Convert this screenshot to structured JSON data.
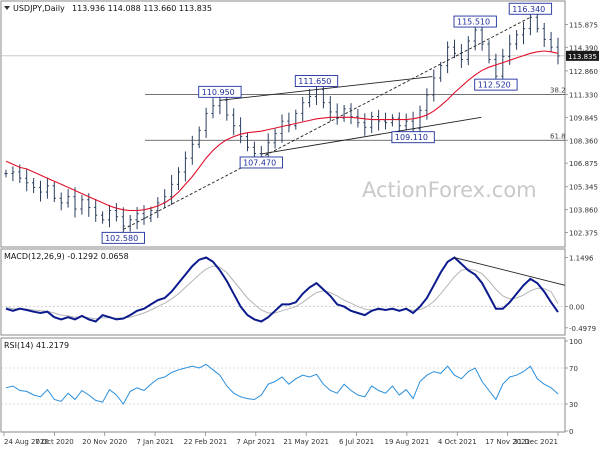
{
  "header": {
    "title": "USDJPY,Daily",
    "ohlc": "113.936 114.088 113.660 113.835"
  },
  "watermark": "ActionForex.com",
  "colors": {
    "price_bars": "#2a3f5f",
    "sma": "#e0102a",
    "macd": "#0b1a8c",
    "signal": "#b5b5b5",
    "rsi": "#2a8fdb",
    "label_box": "#1f2f9c",
    "price_tag": "#1a1a1a",
    "fib_line": "#444444"
  },
  "chart_data": [
    {
      "type": "line",
      "title": "USDJPY,Daily",
      "ylim": [
        101.5,
        117.2
      ],
      "y_ticks": [
        "115.875",
        "114.390",
        "112.860",
        "111.330",
        "109.845",
        "108.360",
        "106.875",
        "105.345",
        "103.860",
        "102.375"
      ],
      "x_ticks": [
        "24 Aug 2020",
        "7 Oct 2020",
        "20 Nov 2020",
        "7 Jan 2021",
        "22 Feb 2021",
        "7 Apr 2021",
        "21 May 2021",
        "6 Jul 2021",
        "19 Aug 2021",
        "4 Oct 2021",
        "17 Nov 2021",
        "31 Dec 2021"
      ],
      "last_price": "113.835",
      "series": [
        {
          "values": [
            106.2,
            106.3,
            105.9,
            105.6,
            105.3,
            105.0,
            105.4,
            104.6,
            104.3,
            104.7,
            103.9,
            104.5,
            104.0,
            103.5,
            103.2,
            103.8,
            103.4,
            102.8,
            103.2,
            103.6,
            103.3,
            103.8,
            104.3,
            104.7,
            105.5,
            106.3,
            107.2,
            108.1,
            109.0,
            110.1,
            110.6,
            110.95,
            110.0,
            109.3,
            108.6,
            107.9,
            107.5,
            107.47,
            108.2,
            108.8,
            109.6,
            109.3,
            110.1,
            110.8,
            111.2,
            111.65,
            110.8,
            110.2,
            109.8,
            110.4,
            109.9,
            109.5,
            109.2,
            109.9,
            109.6,
            109.5,
            109.8,
            109.3,
            109.6,
            109.11,
            110.3,
            111.3,
            112.4,
            113.2,
            114.4,
            114.0,
            113.6,
            114.8,
            115.51,
            114.6,
            113.6,
            112.52,
            113.8,
            114.6,
            115.2,
            115.6,
            116.34,
            115.6,
            114.9,
            114.4,
            113.835
          ]
        },
        {
          "name": "SMA",
          "values": [
            107.0,
            106.8,
            106.6,
            106.5,
            106.3,
            106.1,
            105.9,
            105.7,
            105.5,
            105.3,
            105.1,
            104.9,
            104.7,
            104.5,
            104.3,
            104.1,
            103.95,
            103.85,
            103.8,
            103.8,
            103.85,
            103.95,
            104.1,
            104.3,
            104.6,
            105.0,
            105.5,
            106.0,
            106.6,
            107.2,
            107.7,
            108.1,
            108.4,
            108.6,
            108.75,
            108.85,
            108.9,
            108.95,
            109.05,
            109.15,
            109.25,
            109.35,
            109.45,
            109.55,
            109.65,
            109.75,
            109.8,
            109.85,
            109.85,
            109.85,
            109.85,
            109.8,
            109.75,
            109.7,
            109.7,
            109.7,
            109.7,
            109.7,
            109.7,
            109.75,
            109.85,
            110.0,
            110.25,
            110.6,
            111.0,
            111.45,
            111.85,
            112.25,
            112.6,
            112.9,
            113.1,
            113.25,
            113.4,
            113.55,
            113.7,
            113.85,
            114.0,
            114.1,
            114.15,
            114.1,
            114.0
          ]
        }
      ],
      "annotations": [
        "102.580",
        "110.950",
        "107.470",
        "111.650",
        "109.110",
        "115.510",
        "112.520",
        "116.340",
        "38.2",
        "61.8"
      ]
    },
    {
      "type": "line",
      "title": "MACD(12,26,9) -0.1292 0.0658",
      "ylim": [
        -0.62,
        1.28
      ],
      "y_ticks": [
        "1.1496",
        "0.00",
        "-0.4979"
      ],
      "series": [
        {
          "name": "MACD",
          "values": [
            -0.05,
            -0.1,
            -0.05,
            -0.08,
            -0.12,
            -0.15,
            -0.12,
            -0.25,
            -0.3,
            -0.25,
            -0.3,
            -0.22,
            -0.3,
            -0.35,
            -0.2,
            -0.25,
            -0.3,
            -0.28,
            -0.2,
            -0.1,
            -0.05,
            0.05,
            0.15,
            0.2,
            0.35,
            0.55,
            0.75,
            0.95,
            1.1,
            1.15,
            1.05,
            0.85,
            0.6,
            0.3,
            0.0,
            -0.2,
            -0.3,
            -0.35,
            -0.25,
            -0.1,
            0.05,
            0.05,
            0.1,
            0.3,
            0.45,
            0.55,
            0.4,
            0.25,
            0.05,
            0.0,
            -0.1,
            -0.15,
            -0.2,
            -0.1,
            -0.05,
            -0.08,
            -0.05,
            -0.1,
            -0.05,
            -0.15,
            0.0,
            0.2,
            0.5,
            0.8,
            1.05,
            1.15,
            1.0,
            0.85,
            0.75,
            0.55,
            0.25,
            -0.05,
            -0.05,
            0.1,
            0.3,
            0.5,
            0.65,
            0.55,
            0.35,
            0.1,
            -0.1292
          ]
        },
        {
          "name": "Signal",
          "values": [
            -0.02,
            -0.05,
            -0.05,
            -0.06,
            -0.08,
            -0.1,
            -0.11,
            -0.15,
            -0.2,
            -0.22,
            -0.25,
            -0.24,
            -0.26,
            -0.29,
            -0.26,
            -0.26,
            -0.27,
            -0.27,
            -0.25,
            -0.2,
            -0.15,
            -0.08,
            0.0,
            0.08,
            0.18,
            0.3,
            0.45,
            0.6,
            0.75,
            0.88,
            0.95,
            0.92,
            0.8,
            0.6,
            0.4,
            0.2,
            0.05,
            -0.08,
            -0.15,
            -0.15,
            -0.1,
            -0.05,
            0.0,
            0.1,
            0.22,
            0.33,
            0.37,
            0.33,
            0.25,
            0.15,
            0.08,
            0.0,
            -0.06,
            -0.08,
            -0.08,
            -0.08,
            -0.07,
            -0.08,
            -0.07,
            -0.09,
            -0.07,
            0.0,
            0.12,
            0.3,
            0.5,
            0.7,
            0.85,
            0.88,
            0.85,
            0.77,
            0.6,
            0.4,
            0.25,
            0.18,
            0.2,
            0.27,
            0.37,
            0.43,
            0.42,
            0.35,
            0.0658
          ]
        }
      ]
    },
    {
      "type": "line",
      "title": "RSI(14) 41.2179",
      "ylim": [
        0,
        100
      ],
      "y_ticks": [
        "100",
        "70",
        "30",
        "0"
      ],
      "series": [
        {
          "name": "RSI",
          "values": [
            48,
            50,
            45,
            44,
            40,
            38,
            46,
            35,
            33,
            42,
            35,
            45,
            40,
            34,
            32,
            46,
            40,
            30,
            44,
            48,
            45,
            52,
            58,
            60,
            65,
            68,
            70,
            72,
            70,
            74,
            68,
            62,
            50,
            42,
            38,
            36,
            35,
            40,
            52,
            55,
            60,
            52,
            58,
            62,
            60,
            63,
            52,
            45,
            42,
            52,
            45,
            40,
            38,
            50,
            45,
            42,
            50,
            40,
            46,
            36,
            55,
            62,
            66,
            64,
            72,
            62,
            58,
            66,
            70,
            55,
            45,
            35,
            52,
            60,
            62,
            66,
            72,
            58,
            52,
            48,
            41.2179
          ]
        }
      ]
    }
  ]
}
